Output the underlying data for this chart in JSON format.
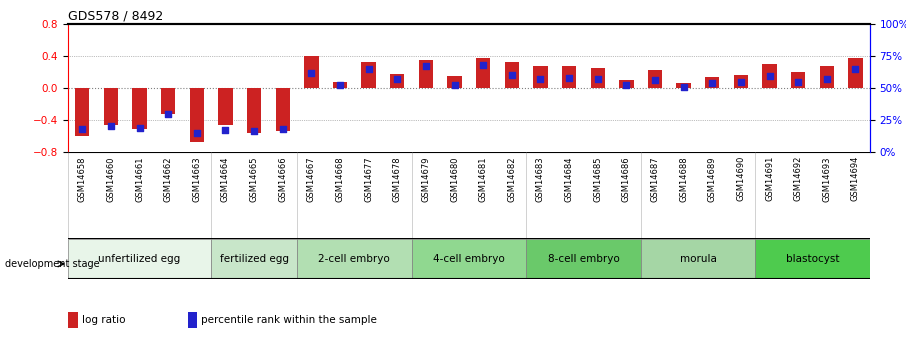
{
  "title": "GDS578 / 8492",
  "samples": [
    "GSM14658",
    "GSM14660",
    "GSM14661",
    "GSM14662",
    "GSM14663",
    "GSM14664",
    "GSM14665",
    "GSM14666",
    "GSM14667",
    "GSM14668",
    "GSM14677",
    "GSM14678",
    "GSM14679",
    "GSM14680",
    "GSM14681",
    "GSM14682",
    "GSM14683",
    "GSM14684",
    "GSM14685",
    "GSM14686",
    "GSM14687",
    "GSM14688",
    "GSM14689",
    "GSM14690",
    "GSM14691",
    "GSM14692",
    "GSM14693",
    "GSM14694"
  ],
  "log_ratio": [
    -0.6,
    -0.46,
    -0.52,
    -0.33,
    -0.68,
    -0.46,
    -0.56,
    -0.54,
    0.4,
    0.08,
    0.32,
    0.18,
    0.35,
    0.15,
    0.38,
    0.32,
    0.27,
    0.28,
    0.25,
    0.1,
    0.23,
    0.06,
    0.14,
    0.16,
    0.3,
    0.2,
    0.27,
    0.37
  ],
  "percentile_rank": [
    18,
    20,
    19,
    30,
    15,
    17,
    16,
    18,
    62,
    52,
    65,
    57,
    67,
    52,
    68,
    60,
    57,
    58,
    57,
    52,
    56,
    51,
    54,
    55,
    59,
    55,
    57,
    65
  ],
  "groups": [
    {
      "label": "unfertilized egg",
      "start": 0,
      "end": 5
    },
    {
      "label": "fertilized egg",
      "start": 5,
      "end": 8
    },
    {
      "label": "2-cell embryo",
      "start": 8,
      "end": 12
    },
    {
      "label": "4-cell embryo",
      "start": 12,
      "end": 16
    },
    {
      "label": "8-cell embryo",
      "start": 16,
      "end": 20
    },
    {
      "label": "morula",
      "start": 20,
      "end": 24
    },
    {
      "label": "blastocyst",
      "start": 24,
      "end": 28
    }
  ],
  "group_colors": [
    "#e8f5e9",
    "#c8e6c9",
    "#b2dfb2",
    "#90d890",
    "#6ac96a",
    "#a5d6a5",
    "#4ecb4e"
  ],
  "ylim_left": [
    -0.8,
    0.8
  ],
  "ylim_right": [
    0,
    100
  ],
  "yticks_left": [
    -0.8,
    -0.4,
    0.0,
    0.4,
    0.8
  ],
  "yticks_right": [
    0,
    25,
    50,
    75,
    100
  ],
  "bar_color": "#cc2222",
  "dot_color": "#2222cc",
  "bar_width": 0.5,
  "dot_size": 20,
  "legend_items": [
    "log ratio",
    "percentile rank within the sample"
  ],
  "legend_colors": [
    "#cc2222",
    "#2222cc"
  ],
  "dev_stage_label": "development stage",
  "background_color": "#ffffff"
}
